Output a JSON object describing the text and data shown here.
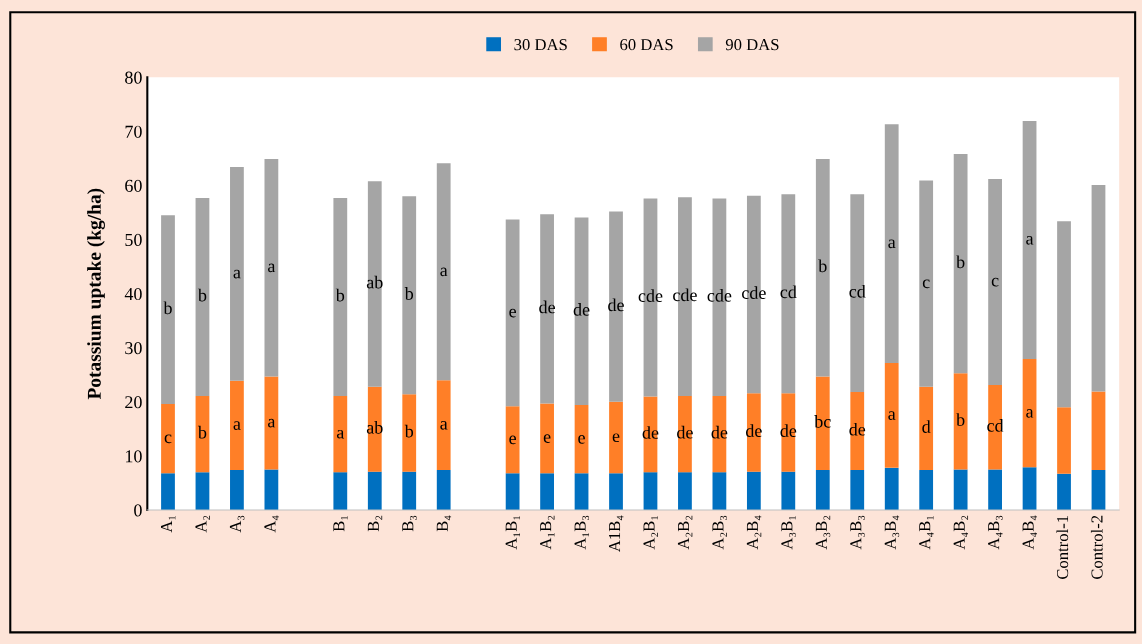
{
  "chart_data": {
    "type": "bar",
    "stacked": true,
    "ylabel": "Potassium uptake (kg/ha)",
    "categories": [
      "A₁",
      "A₂",
      "A₃",
      "A₄",
      null,
      "B₁",
      "B₂",
      "B₃",
      "B₄",
      null,
      "A₁B₁",
      "A₁B₂",
      "A₁B₃",
      "A1B₄",
      "A₂B₁",
      "A₂B₂",
      "A₂B₃",
      "A₂B₄",
      "A₃B₁",
      "A₃B₂",
      "A₃B₃",
      "A₃B₄",
      "A₄B₁",
      "A₄B₂",
      "A₄B₃",
      "A₄B₄",
      "Control-1",
      "Control-2"
    ],
    "series": [
      {
        "name": "30 DAS",
        "color": "#0070c0",
        "values": [
          6.8,
          7.0,
          7.4,
          7.5,
          null,
          7.0,
          7.1,
          7.1,
          7.4,
          null,
          6.8,
          6.8,
          6.8,
          6.8,
          7.0,
          7.0,
          7.0,
          7.1,
          7.1,
          7.4,
          7.4,
          7.8,
          7.4,
          7.5,
          7.5,
          7.9,
          6.7,
          7.4
        ]
      },
      {
        "name": "60 DAS",
        "color": "#ff7f27",
        "values": [
          12.8,
          14.1,
          16.5,
          17.2,
          null,
          14.1,
          15.7,
          14.3,
          16.6,
          null,
          12.4,
          12.9,
          12.6,
          13.2,
          14.0,
          14.1,
          14.1,
          14.5,
          14.5,
          17.3,
          14.4,
          19.4,
          15.4,
          17.8,
          15.6,
          20.0,
          12.3,
          14.5
        ],
        "value_labels": [
          "c",
          "b",
          "a",
          "a",
          null,
          "a",
          "ab",
          "b",
          "a",
          null,
          "e",
          "e",
          "e",
          "e",
          "de",
          "de",
          "de",
          "de",
          "de",
          "bc",
          "de",
          "a",
          "d",
          "b",
          "cd",
          "a",
          null,
          null
        ]
      },
      {
        "name": "90 DAS",
        "color": "#a5a5a5",
        "values": [
          34.9,
          36.6,
          39.5,
          40.2,
          null,
          36.6,
          38.0,
          36.6,
          40.1,
          null,
          34.5,
          35.0,
          34.7,
          35.2,
          36.6,
          36.7,
          36.5,
          36.5,
          36.8,
          40.2,
          36.6,
          44.1,
          38.1,
          40.5,
          38.1,
          44.0,
          34.4,
          38.2
        ],
        "value_labels": [
          "b",
          "b",
          "a",
          "a",
          null,
          "b",
          "ab",
          "b",
          "a",
          null,
          "e",
          "de",
          "de",
          "de",
          "cde",
          "cde",
          "cde",
          "cde",
          "cd",
          "b",
          "cd",
          "a",
          "c",
          "b",
          "c",
          "a",
          null,
          null
        ]
      }
    ],
    "ylim": [
      0,
      80
    ],
    "yticks": [
      0,
      10,
      20,
      30,
      40,
      50,
      60,
      70,
      80
    ],
    "legend": "top",
    "grid": false
  }
}
